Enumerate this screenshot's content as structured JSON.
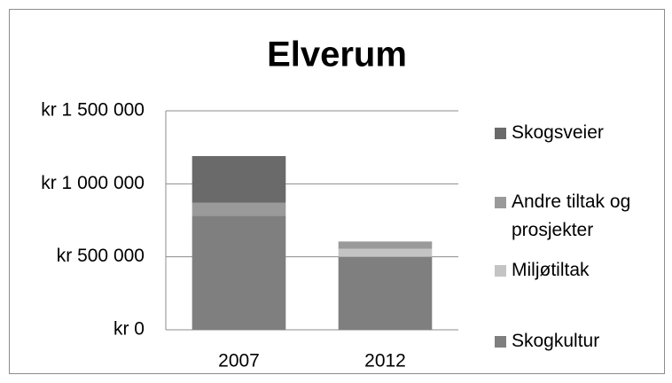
{
  "chart_data": {
    "type": "stacked_bar",
    "title": "Elverum",
    "categories": [
      "2007",
      "2012"
    ],
    "series": [
      {
        "name": "Skogkultur",
        "color": "#7f7f7f",
        "values": [
          780000,
          500000
        ]
      },
      {
        "name": "Miljøtiltak",
        "color": "#c4c4c4",
        "values": [
          0,
          55000
        ]
      },
      {
        "name": "Andre tiltak og prosjekter",
        "color": "#9a9a9a",
        "values": [
          90000,
          50000
        ]
      },
      {
        "name": "Skogsveier",
        "color": "#6a6a6a",
        "values": [
          320000,
          0
        ]
      }
    ],
    "ylim": [
      0,
      1500000
    ],
    "yticks": [
      {
        "value": 0,
        "label": "kr 0"
      },
      {
        "value": 500000,
        "label": "kr 500 000"
      },
      {
        "value": 1000000,
        "label": "kr 1 000 000"
      },
      {
        "value": 1500000,
        "label": "kr 1 500 000"
      }
    ],
    "grid": true,
    "legend": "right"
  }
}
